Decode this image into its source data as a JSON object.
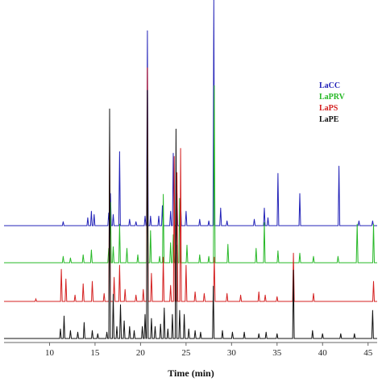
{
  "chart_data": {
    "type": "line",
    "xlabel": "Time (min)",
    "ylabel": "",
    "xlim": [
      5,
      46
    ],
    "x_ticks": [
      10,
      15,
      20,
      25,
      30,
      35,
      40,
      45
    ],
    "grid": false,
    "legend_position": "top-right",
    "series": [
      {
        "name": "LaCC",
        "color": "#2323b8",
        "peaks": [
          [
            11.5,
            5
          ],
          [
            14.2,
            10
          ],
          [
            14.6,
            18
          ],
          [
            14.9,
            14
          ],
          [
            16.5,
            16
          ],
          [
            16.7,
            40
          ],
          [
            17.0,
            14
          ],
          [
            17.7,
            92
          ],
          [
            18.8,
            8
          ],
          [
            19.5,
            5
          ],
          [
            20.5,
            12
          ],
          [
            20.75,
            242
          ],
          [
            21.1,
            12
          ],
          [
            22.0,
            12
          ],
          [
            22.4,
            25
          ],
          [
            23.3,
            18
          ],
          [
            23.6,
            90
          ],
          [
            24.0,
            40
          ],
          [
            24.4,
            32
          ],
          [
            25.0,
            18
          ],
          [
            26.5,
            8
          ],
          [
            27.5,
            6
          ],
          [
            28.05,
            280
          ],
          [
            28.8,
            22
          ],
          [
            29.5,
            6
          ],
          [
            32.5,
            8
          ],
          [
            33.6,
            22
          ],
          [
            34.0,
            10
          ],
          [
            35.1,
            65
          ],
          [
            37.5,
            40
          ],
          [
            41.8,
            74
          ],
          [
            44.0,
            6
          ],
          [
            45.5,
            6
          ]
        ]
      },
      {
        "name": "LaPRV",
        "color": "#27b827",
        "peaks": [
          [
            11.5,
            8
          ],
          [
            12.3,
            6
          ],
          [
            13.7,
            10
          ],
          [
            14.6,
            16
          ],
          [
            16.5,
            18
          ],
          [
            16.7,
            75
          ],
          [
            17.0,
            20
          ],
          [
            17.7,
            48
          ],
          [
            18.5,
            18
          ],
          [
            19.7,
            10
          ],
          [
            20.75,
            180
          ],
          [
            21.1,
            40
          ],
          [
            22.1,
            8
          ],
          [
            22.5,
            85
          ],
          [
            23.3,
            25
          ],
          [
            23.6,
            35
          ],
          [
            24.0,
            22
          ],
          [
            24.3,
            80
          ],
          [
            25.1,
            22
          ],
          [
            26.5,
            10
          ],
          [
            27.5,
            8
          ],
          [
            28.1,
            220
          ],
          [
            29.6,
            23
          ],
          [
            32.7,
            18
          ],
          [
            33.6,
            50
          ],
          [
            35.1,
            15
          ],
          [
            37.5,
            12
          ],
          [
            39.0,
            8
          ],
          [
            41.7,
            8
          ],
          [
            43.8,
            48
          ],
          [
            45.6,
            48
          ]
        ]
      },
      {
        "name": "LaPS",
        "color": "#d42020",
        "peaks": [
          [
            8.5,
            3
          ],
          [
            11.3,
            40
          ],
          [
            11.8,
            28
          ],
          [
            12.8,
            8
          ],
          [
            13.7,
            22
          ],
          [
            14.7,
            25
          ],
          [
            16.0,
            10
          ],
          [
            16.6,
            200
          ],
          [
            17.1,
            30
          ],
          [
            17.7,
            45
          ],
          [
            18.3,
            15
          ],
          [
            19.5,
            8
          ],
          [
            20.3,
            15
          ],
          [
            20.75,
            290
          ],
          [
            21.2,
            35
          ],
          [
            22.5,
            55
          ],
          [
            23.3,
            20
          ],
          [
            23.7,
            180
          ],
          [
            24.0,
            160
          ],
          [
            24.4,
            190
          ],
          [
            25.0,
            45
          ],
          [
            26.0,
            12
          ],
          [
            27.0,
            10
          ],
          [
            28.1,
            55
          ],
          [
            29.5,
            10
          ],
          [
            31.0,
            8
          ],
          [
            33.0,
            12
          ],
          [
            33.7,
            8
          ],
          [
            35.0,
            6
          ],
          [
            36.8,
            60
          ],
          [
            39.0,
            10
          ],
          [
            45.6,
            25
          ]
        ]
      },
      {
        "name": "LaPE",
        "color": "#111111",
        "peaks": [
          [
            11.2,
            12
          ],
          [
            11.6,
            28
          ],
          [
            12.3,
            10
          ],
          [
            13.1,
            8
          ],
          [
            13.8,
            20
          ],
          [
            14.7,
            10
          ],
          [
            15.3,
            6
          ],
          [
            16.3,
            8
          ],
          [
            16.6,
            285
          ],
          [
            17.0,
            55
          ],
          [
            17.4,
            15
          ],
          [
            17.8,
            42
          ],
          [
            18.2,
            22
          ],
          [
            18.8,
            15
          ],
          [
            19.3,
            10
          ],
          [
            20.2,
            15
          ],
          [
            20.5,
            30
          ],
          [
            20.75,
            308
          ],
          [
            21.2,
            25
          ],
          [
            21.6,
            15
          ],
          [
            22.2,
            18
          ],
          [
            22.6,
            38
          ],
          [
            23.0,
            12
          ],
          [
            23.5,
            30
          ],
          [
            23.9,
            260
          ],
          [
            24.3,
            35
          ],
          [
            24.8,
            30
          ],
          [
            25.3,
            12
          ],
          [
            26.0,
            10
          ],
          [
            26.6,
            8
          ],
          [
            28.0,
            65
          ],
          [
            29.0,
            10
          ],
          [
            30.1,
            8
          ],
          [
            31.4,
            8
          ],
          [
            33.0,
            6
          ],
          [
            33.8,
            8
          ],
          [
            35.0,
            6
          ],
          [
            36.8,
            85
          ],
          [
            38.9,
            10
          ],
          [
            40.0,
            6
          ],
          [
            42.0,
            6
          ],
          [
            43.5,
            6
          ],
          [
            45.5,
            35
          ]
        ]
      }
    ]
  }
}
